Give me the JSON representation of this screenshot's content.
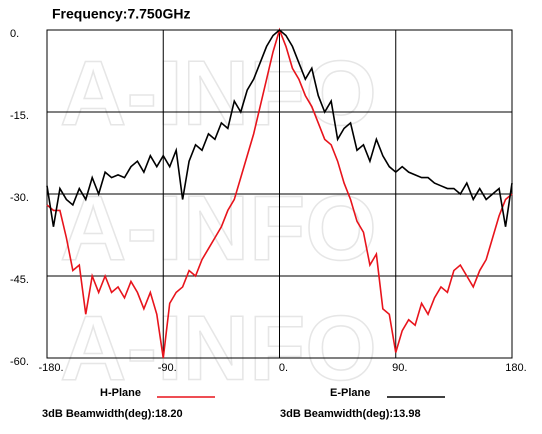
{
  "chart_data": {
    "type": "line",
    "title": "Frequency:7.750GHz",
    "watermark": "A-INFO",
    "x": [
      -180,
      -175,
      -170,
      -165,
      -160,
      -155,
      -150,
      -145,
      -140,
      -135,
      -130,
      -125,
      -120,
      -115,
      -110,
      -105,
      -100,
      -95,
      -90,
      -85,
      -80,
      -75,
      -70,
      -65,
      -60,
      -55,
      -50,
      -45,
      -40,
      -35,
      -30,
      -25,
      -20,
      -15,
      -10,
      -5,
      0,
      5,
      10,
      15,
      20,
      25,
      30,
      35,
      40,
      45,
      50,
      55,
      60,
      65,
      70,
      75,
      80,
      85,
      90,
      95,
      100,
      105,
      110,
      115,
      120,
      125,
      130,
      135,
      140,
      145,
      150,
      155,
      160,
      165,
      170,
      175,
      180
    ],
    "series": [
      {
        "name": "H-Plane",
        "color": "#e8141c",
        "values": [
          -32,
          -33,
          -33,
          -38,
          -44,
          -43,
          -52,
          -45,
          -48,
          -45,
          -48,
          -47,
          -49,
          -46,
          -48,
          -51,
          -48,
          -52,
          -60,
          -50,
          -48,
          -47,
          -44,
          -45,
          -42,
          -40,
          -38,
          -36,
          -33,
          -31,
          -27,
          -23,
          -19,
          -14,
          -9,
          -4,
          0,
          -3,
          -7,
          -9,
          -12,
          -14,
          -17,
          -20,
          -21,
          -24,
          -28,
          -31,
          -35,
          -37,
          -43,
          -41,
          -51,
          -52,
          -59,
          -55,
          -53,
          -54,
          -50,
          -52,
          -49,
          -47,
          -48,
          -44,
          -43,
          -45,
          -47,
          -44,
          -42,
          -38,
          -34,
          -31,
          -30
        ]
      },
      {
        "name": "E-Plane",
        "color": "#000000",
        "values": [
          -28.5,
          -36,
          -29,
          -31,
          -32,
          -29,
          -31,
          -27,
          -30,
          -26,
          -27,
          -26.5,
          -27,
          -25,
          -24,
          -26,
          -23,
          -25,
          -23,
          -25,
          -22,
          -31,
          -24,
          -21,
          -22,
          -19,
          -20,
          -17,
          -18,
          -13,
          -15,
          -11,
          -9,
          -6,
          -3,
          -1,
          0,
          -1,
          -3,
          -6,
          -9,
          -7,
          -12,
          -15,
          -13,
          -20,
          -18,
          -17,
          -22,
          -21,
          -24,
          -20,
          -23,
          -25,
          -26,
          -25,
          -26,
          -26.5,
          -27,
          -27,
          -28,
          -28.5,
          -29,
          -29,
          -30,
          -28,
          -31,
          -29,
          -31,
          -30,
          -29,
          -36,
          -28
        ]
      }
    ],
    "annotations": [
      "3dB Beamwidth(deg):18.20",
      "3dB Beamwidth(deg):13.98"
    ],
    "xlim": [
      -180,
      180
    ],
    "ylim": [
      -60,
      0
    ],
    "xticks": [
      {
        "value": -180,
        "label": "-180."
      },
      {
        "value": -90,
        "label": "-90."
      },
      {
        "value": 0,
        "label": "0."
      },
      {
        "value": 90,
        "label": "90."
      },
      {
        "value": 180,
        "label": "180."
      }
    ],
    "yticks": [
      {
        "value": 0,
        "label": "0."
      },
      {
        "value": -15,
        "label": "-15."
      },
      {
        "value": -30,
        "label": "-30."
      },
      {
        "value": -45,
        "label": "-45."
      },
      {
        "value": -60,
        "label": "-60."
      }
    ],
    "grid": true
  }
}
